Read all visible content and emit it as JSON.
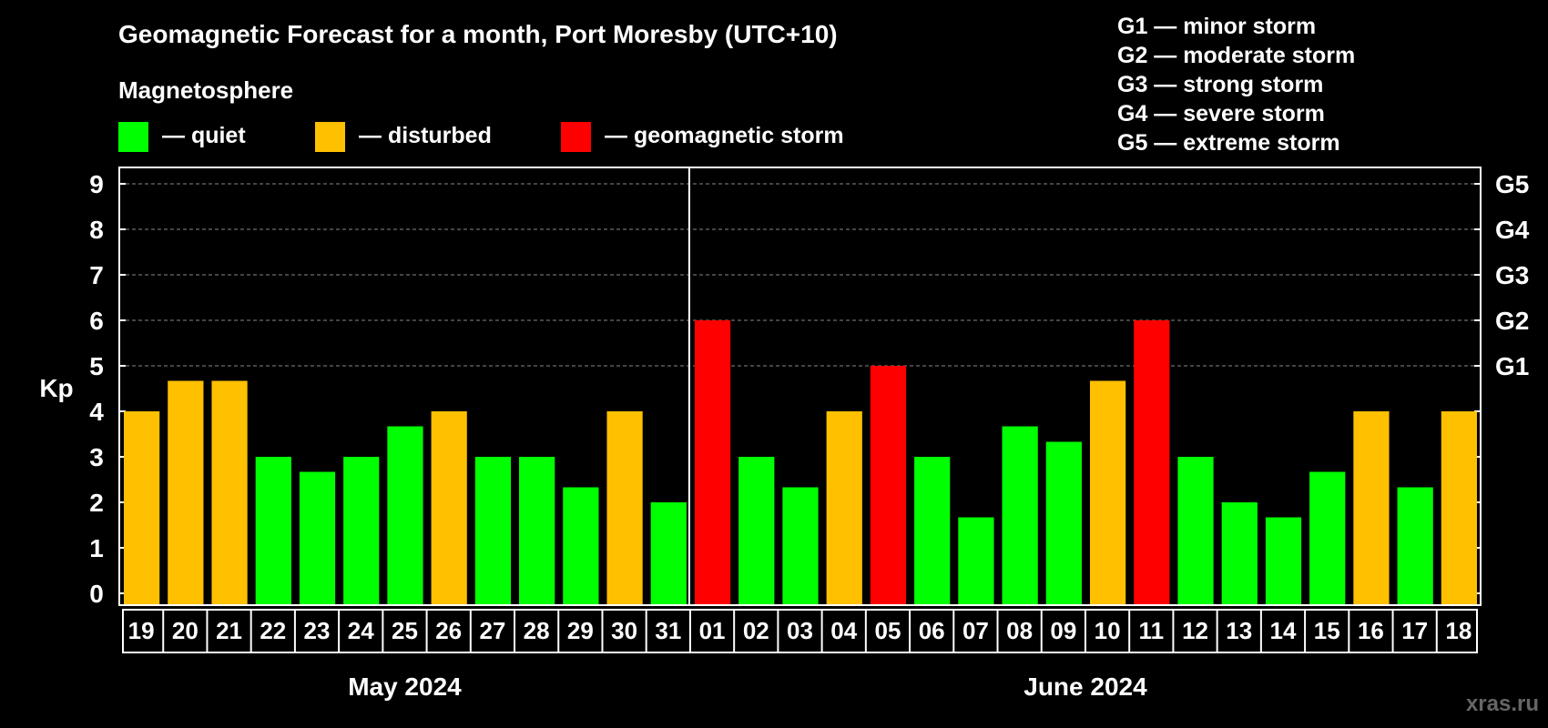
{
  "chart_data": {
    "type": "bar",
    "title": "Geomagnetic Forecast for a month, Port Moresby (UTC+10)",
    "subtitle": "Magnetosphere",
    "ylabel": "Kp",
    "ylim": [
      0,
      9
    ],
    "yticks": [
      "0",
      "1",
      "2",
      "3",
      "4",
      "5",
      "6",
      "7",
      "8",
      "9"
    ],
    "right_axis_labels": [
      {
        "kp": 5,
        "label": "G1"
      },
      {
        "kp": 6,
        "label": "G2"
      },
      {
        "kp": 7,
        "label": "G3"
      },
      {
        "kp": 8,
        "label": "G4"
      },
      {
        "kp": 9,
        "label": "G5"
      }
    ],
    "legend": [
      {
        "label": "— quiet",
        "color": "#00ff00"
      },
      {
        "label": "— disturbed",
        "color": "#ffc000"
      },
      {
        "label": "— geomagnetic storm",
        "color": "#ff0000"
      }
    ],
    "scale_legend": [
      "G1 — minor storm",
      "G2 — moderate storm",
      "G3 — strong storm",
      "G4 — severe storm",
      "G5 — extreme storm"
    ],
    "months": [
      {
        "label": "May 2024",
        "days": 13
      },
      {
        "label": "June 2024",
        "days": 18
      }
    ],
    "categories": [
      "19",
      "20",
      "21",
      "22",
      "23",
      "24",
      "25",
      "26",
      "27",
      "28",
      "29",
      "30",
      "31",
      "01",
      "02",
      "03",
      "04",
      "05",
      "06",
      "07",
      "08",
      "09",
      "10",
      "11",
      "12",
      "13",
      "14",
      "15",
      "16",
      "17",
      "18"
    ],
    "values": [
      4,
      4.67,
      4.67,
      3,
      2.67,
      3,
      3.67,
      4,
      3,
      3,
      2.33,
      4,
      2,
      6,
      3,
      2.33,
      4,
      5,
      3,
      1.67,
      3.67,
      3.33,
      4.67,
      6,
      3,
      2,
      1.67,
      2.67,
      4,
      2.33,
      4
    ],
    "levels": [
      "disturbed",
      "disturbed",
      "disturbed",
      "quiet",
      "quiet",
      "quiet",
      "quiet",
      "disturbed",
      "quiet",
      "quiet",
      "quiet",
      "disturbed",
      "quiet",
      "storm",
      "quiet",
      "quiet",
      "disturbed",
      "storm",
      "quiet",
      "quiet",
      "quiet",
      "quiet",
      "disturbed",
      "storm",
      "quiet",
      "quiet",
      "quiet",
      "quiet",
      "disturbed",
      "quiet",
      "disturbed"
    ],
    "colors": {
      "quiet": "#00ff00",
      "disturbed": "#ffc000",
      "storm": "#ff0000"
    },
    "grid": true
  },
  "watermark": "xras.ru"
}
